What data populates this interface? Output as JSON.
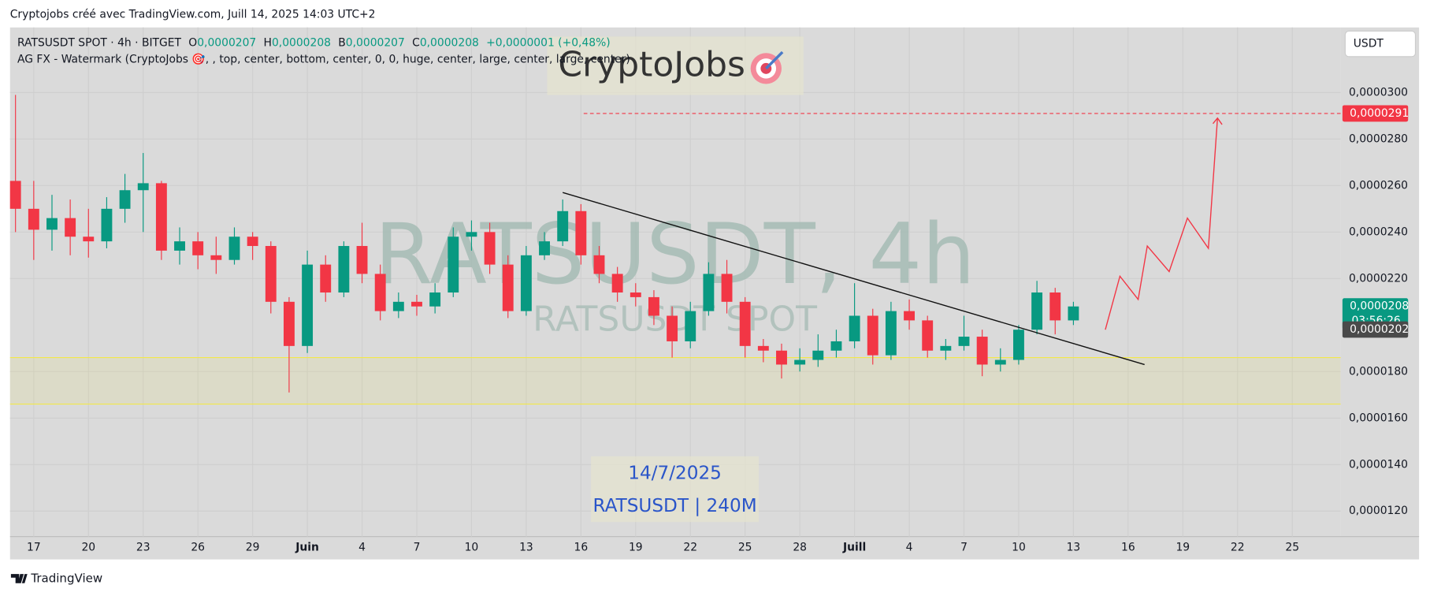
{
  "header": {
    "credit": "Cryptojobs créé avec TradingView.com, Juill 14, 2025 14:03 UTC+2",
    "footer": "TradingView",
    "currency": "USDT"
  },
  "legend": {
    "symbol": "RATSUSDT SPOT · 4h · BITGET",
    "o_label": "O",
    "o": "0,0000207",
    "h_label": "H",
    "h": "0,0000208",
    "b_label": "B",
    "b": "0,0000207",
    "c_label": "C",
    "c": "0,0000208",
    "change": "+0,0000001 (+0,48%)",
    "indicator": "AG FX - Watermark (CryptoJobs 🎯, , top, center, bottom, center, 0, 0, huge, center, large, center, large, center)"
  },
  "watermark": {
    "brand": "CryptoJobs",
    "big": "RATSUSDT, 4h",
    "sub": "RATSUSDT SPOT",
    "date": "14/7/2025",
    "info": "RATSUSDT | 240M"
  },
  "chart_data": {
    "type": "candlestick",
    "up_color": "#089981",
    "down_color": "#f23645",
    "grid": true,
    "x": [
      1,
      2,
      3,
      4,
      5,
      6,
      7,
      8,
      9,
      10,
      11,
      12,
      13,
      14,
      15,
      16,
      17,
      18,
      19,
      20,
      21,
      22,
      23,
      24,
      25,
      26,
      27,
      28,
      29,
      30,
      31,
      32,
      33,
      34,
      35,
      36,
      37,
      38,
      39,
      40,
      41,
      42,
      43,
      44,
      45,
      46,
      47,
      48,
      49,
      50,
      51,
      52,
      53,
      54,
      55,
      56,
      57,
      58,
      59
    ],
    "open": [
      2.62e-05,
      2.5e-05,
      2.41e-05,
      2.46e-05,
      2.38e-05,
      2.36e-05,
      2.5e-05,
      2.58e-05,
      2.61e-05,
      2.32e-05,
      2.36e-05,
      2.3e-05,
      2.28e-05,
      2.38e-05,
      2.34e-05,
      2.1e-05,
      1.91e-05,
      2.26e-05,
      2.14e-05,
      2.34e-05,
      2.22e-05,
      2.06e-05,
      2.1e-05,
      2.08e-05,
      2.14e-05,
      2.38e-05,
      2.4e-05,
      2.26e-05,
      2.06e-05,
      2.3e-05,
      2.36e-05,
      2.49e-05,
      2.3e-05,
      2.22e-05,
      2.14e-05,
      2.12e-05,
      2.04e-05,
      1.93e-05,
      2.06e-05,
      2.22e-05,
      2.1e-05,
      1.91e-05,
      1.89e-05,
      1.83e-05,
      1.85e-05,
      1.89e-05,
      1.93e-05,
      2.04e-05,
      1.87e-05,
      2.06e-05,
      2.02e-05,
      1.89e-05,
      1.91e-05,
      1.95e-05,
      1.83e-05,
      1.85e-05,
      1.98e-05,
      2.14e-05,
      2.02e-05
    ],
    "high": [
      2.99e-05,
      2.62e-05,
      2.56e-05,
      2.54e-05,
      2.5e-05,
      2.55e-05,
      2.65e-05,
      2.74e-05,
      2.62e-05,
      2.42e-05,
      2.4e-05,
      2.38e-05,
      2.42e-05,
      2.4e-05,
      2.36e-05,
      2.12e-05,
      2.32e-05,
      2.3e-05,
      2.36e-05,
      2.44e-05,
      2.26e-05,
      2.14e-05,
      2.13e-05,
      2.18e-05,
      2.42e-05,
      2.45e-05,
      2.44e-05,
      2.3e-05,
      2.34e-05,
      2.4e-05,
      2.54e-05,
      2.52e-05,
      2.34e-05,
      2.25e-05,
      2.18e-05,
      2.15e-05,
      2.08e-05,
      2.1e-05,
      2.27e-05,
      2.28e-05,
      2.12e-05,
      1.94e-05,
      1.92e-05,
      1.9e-05,
      1.96e-05,
      1.98e-05,
      2.18e-05,
      2.07e-05,
      2.1e-05,
      2.11e-05,
      2.04e-05,
      1.94e-05,
      2.04e-05,
      1.98e-05,
      1.9e-05,
      2e-05,
      2.19e-05,
      2.16e-05,
      2.1e-05
    ],
    "low": [
      2.4e-05,
      2.28e-05,
      2.32e-05,
      2.3e-05,
      2.29e-05,
      2.33e-05,
      2.44e-05,
      2.4e-05,
      2.28e-05,
      2.26e-05,
      2.24e-05,
      2.22e-05,
      2.26e-05,
      2.28e-05,
      2.05e-05,
      1.71e-05,
      1.88e-05,
      2.1e-05,
      2.12e-05,
      2.18e-05,
      2.02e-05,
      2.03e-05,
      2.04e-05,
      2.05e-05,
      2.12e-05,
      2.32e-05,
      2.22e-05,
      2.03e-05,
      2.04e-05,
      2.28e-05,
      2.34e-05,
      2.26e-05,
      2.18e-05,
      2.1e-05,
      2.08e-05,
      2e-05,
      1.86e-05,
      1.9e-05,
      2.04e-05,
      2.05e-05,
      1.86e-05,
      1.84e-05,
      1.77e-05,
      1.8e-05,
      1.82e-05,
      1.86e-05,
      1.9e-05,
      1.83e-05,
      1.85e-05,
      1.98e-05,
      1.86e-05,
      1.85e-05,
      1.89e-05,
      1.78e-05,
      1.8e-05,
      1.83e-05,
      1.96e-05,
      1.96e-05,
      2e-05
    ],
    "close": [
      2.5e-05,
      2.41e-05,
      2.46e-05,
      2.38e-05,
      2.36e-05,
      2.5e-05,
      2.58e-05,
      2.61e-05,
      2.32e-05,
      2.36e-05,
      2.3e-05,
      2.28e-05,
      2.38e-05,
      2.34e-05,
      2.1e-05,
      1.91e-05,
      2.26e-05,
      2.14e-05,
      2.34e-05,
      2.22e-05,
      2.06e-05,
      2.1e-05,
      2.08e-05,
      2.14e-05,
      2.38e-05,
      2.4e-05,
      2.26e-05,
      2.06e-05,
      2.3e-05,
      2.36e-05,
      2.49e-05,
      2.3e-05,
      2.22e-05,
      2.14e-05,
      2.12e-05,
      2.04e-05,
      1.93e-05,
      2.06e-05,
      2.22e-05,
      2.1e-05,
      1.91e-05,
      1.89e-05,
      1.83e-05,
      1.85e-05,
      1.89e-05,
      1.93e-05,
      2.04e-05,
      1.87e-05,
      2.06e-05,
      2.02e-05,
      1.89e-05,
      1.91e-05,
      1.95e-05,
      1.83e-05,
      1.85e-05,
      1.98e-05,
      2.14e-05,
      2.02e-05,
      2.08e-05
    ],
    "xlim": [
      0.7,
      73.65
    ],
    "ylim": [
      1.09e-05,
      3.28e-05
    ],
    "xticks": [
      {
        "value": 2,
        "label": "17"
      },
      {
        "value": 5,
        "label": "20"
      },
      {
        "value": 8,
        "label": "23"
      },
      {
        "value": 11,
        "label": "26"
      },
      {
        "value": 14,
        "label": "29"
      },
      {
        "value": 17,
        "label": "Juin"
      },
      {
        "value": 20,
        "label": "4"
      },
      {
        "value": 23,
        "label": "7"
      },
      {
        "value": 26,
        "label": "10"
      },
      {
        "value": 29,
        "label": "13"
      },
      {
        "value": 32,
        "label": "16"
      },
      {
        "value": 35,
        "label": "19"
      },
      {
        "value": 38,
        "label": "22"
      },
      {
        "value": 41,
        "label": "25"
      },
      {
        "value": 44,
        "label": "28"
      },
      {
        "value": 47,
        "label": "Juill"
      },
      {
        "value": 50,
        "label": "4"
      },
      {
        "value": 53,
        "label": "7"
      },
      {
        "value": 56,
        "label": "10"
      },
      {
        "value": 59,
        "label": "13"
      },
      {
        "value": 62,
        "label": "16"
      },
      {
        "value": 65,
        "label": "19"
      },
      {
        "value": 68,
        "label": "22"
      },
      {
        "value": 71,
        "label": "25"
      }
    ],
    "yticks": [
      {
        "value": 1.2e-05,
        "label": "0,0000120"
      },
      {
        "value": 1.4e-05,
        "label": "0,0000140"
      },
      {
        "value": 1.6e-05,
        "label": "0,0000160"
      },
      {
        "value": 1.8e-05,
        "label": "0,0000180"
      },
      {
        "value": 2.2e-05,
        "label": "0,0000220"
      },
      {
        "value": 2.4e-05,
        "label": "0,0000240"
      },
      {
        "value": 2.6e-05,
        "label": "0,0000260"
      },
      {
        "value": 2.8e-05,
        "label": "0,0000280"
      },
      {
        "value": 3e-05,
        "label": "0,0000300"
      }
    ],
    "target_line": {
      "value": 2.91e-05,
      "label": "0,0000291",
      "start_x": 32.15,
      "color": "#f23645"
    },
    "last_price": {
      "value": 2.08e-05,
      "label": "0,0000208",
      "countdown": "03:56:26",
      "color": "#089981"
    },
    "prev_price": {
      "value": 2.02e-05,
      "label": "0,0000202",
      "color": "#4a4a4a"
    },
    "support_zone": {
      "low": 1.66e-05,
      "high": 1.86e-05,
      "color": "#f2e84b"
    },
    "trend_line": {
      "x": [
        31,
        62.9
      ],
      "y": [
        2.57e-05,
        1.83e-05
      ],
      "color": "#111111"
    },
    "projection": {
      "x": [
        60.75,
        61.55,
        62.55,
        63.05,
        64.25,
        65.25,
        66.4,
        66.9
      ],
      "y": [
        1.98e-05,
        2.21e-05,
        2.11e-05,
        2.34e-05,
        2.23e-05,
        2.46e-05,
        2.33e-05,
        2.89e-05
      ],
      "color": "#f23645"
    }
  }
}
